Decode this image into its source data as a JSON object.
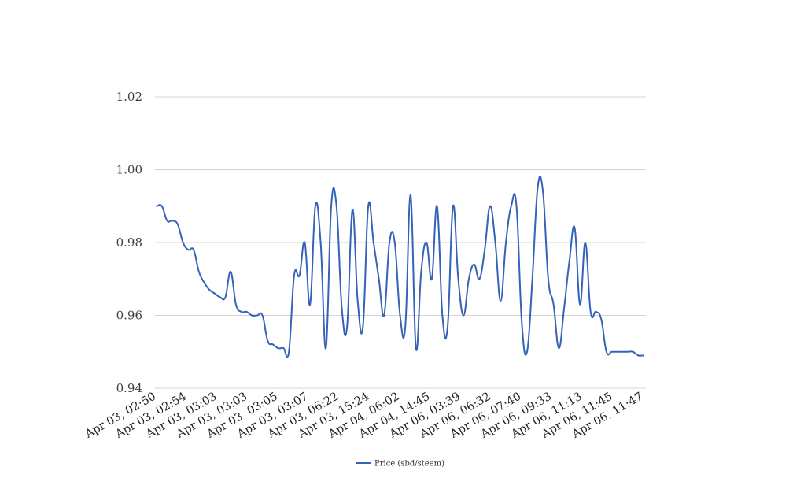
{
  "chart_data": {
    "type": "line",
    "title": "",
    "xlabel": "",
    "ylabel": "",
    "ylim": [
      0.94,
      1.02
    ],
    "yticks": [
      "0.94",
      "0.96",
      "0.98",
      "1.00",
      "1.02"
    ],
    "grid": "horizontal",
    "legend_position": "bottom",
    "line_color": "#3563b8",
    "x_tick_labels": [
      "Apr 03, 02:50",
      "Apr 03, 02:54",
      "Apr 03, 03:03",
      "Apr 03, 03:03",
      "Apr 03, 03:05",
      "Apr 03, 03:07",
      "Apr 03, 06:22",
      "Apr 03, 15:24",
      "Apr 04, 06:02",
      "Apr 04, 14:45",
      "Apr 06, 03:39",
      "Apr 06, 06:32",
      "Apr 06, 07:40",
      "Apr 06, 09:33",
      "Apr 06, 11:13",
      "Apr 06, 11:45",
      "Apr 06, 11:47"
    ],
    "series": [
      {
        "name": "Price (sbd/steem)",
        "values": [
          0.99,
          0.99,
          0.986,
          0.986,
          0.985,
          0.98,
          0.978,
          0.978,
          0.972,
          0.969,
          0.967,
          0.966,
          0.965,
          0.965,
          0.972,
          0.963,
          0.961,
          0.961,
          0.96,
          0.96,
          0.96,
          0.953,
          0.952,
          0.951,
          0.951,
          0.95,
          0.971,
          0.971,
          0.98,
          0.963,
          0.99,
          0.98,
          0.951,
          0.99,
          0.99,
          0.962,
          0.957,
          0.989,
          0.964,
          0.957,
          0.99,
          0.98,
          0.97,
          0.96,
          0.98,
          0.98,
          0.96,
          0.957,
          0.993,
          0.951,
          0.972,
          0.98,
          0.97,
          0.99,
          0.96,
          0.957,
          0.99,
          0.97,
          0.96,
          0.97,
          0.974,
          0.97,
          0.978,
          0.99,
          0.98,
          0.964,
          0.98,
          0.99,
          0.99,
          0.958,
          0.95,
          0.97,
          0.995,
          0.994,
          0.97,
          0.963,
          0.951,
          0.962,
          0.975,
          0.984,
          0.963,
          0.98,
          0.961,
          0.961,
          0.959,
          0.95,
          0.95,
          0.95,
          0.95,
          0.95,
          0.95,
          0.949,
          0.949
        ]
      }
    ]
  }
}
